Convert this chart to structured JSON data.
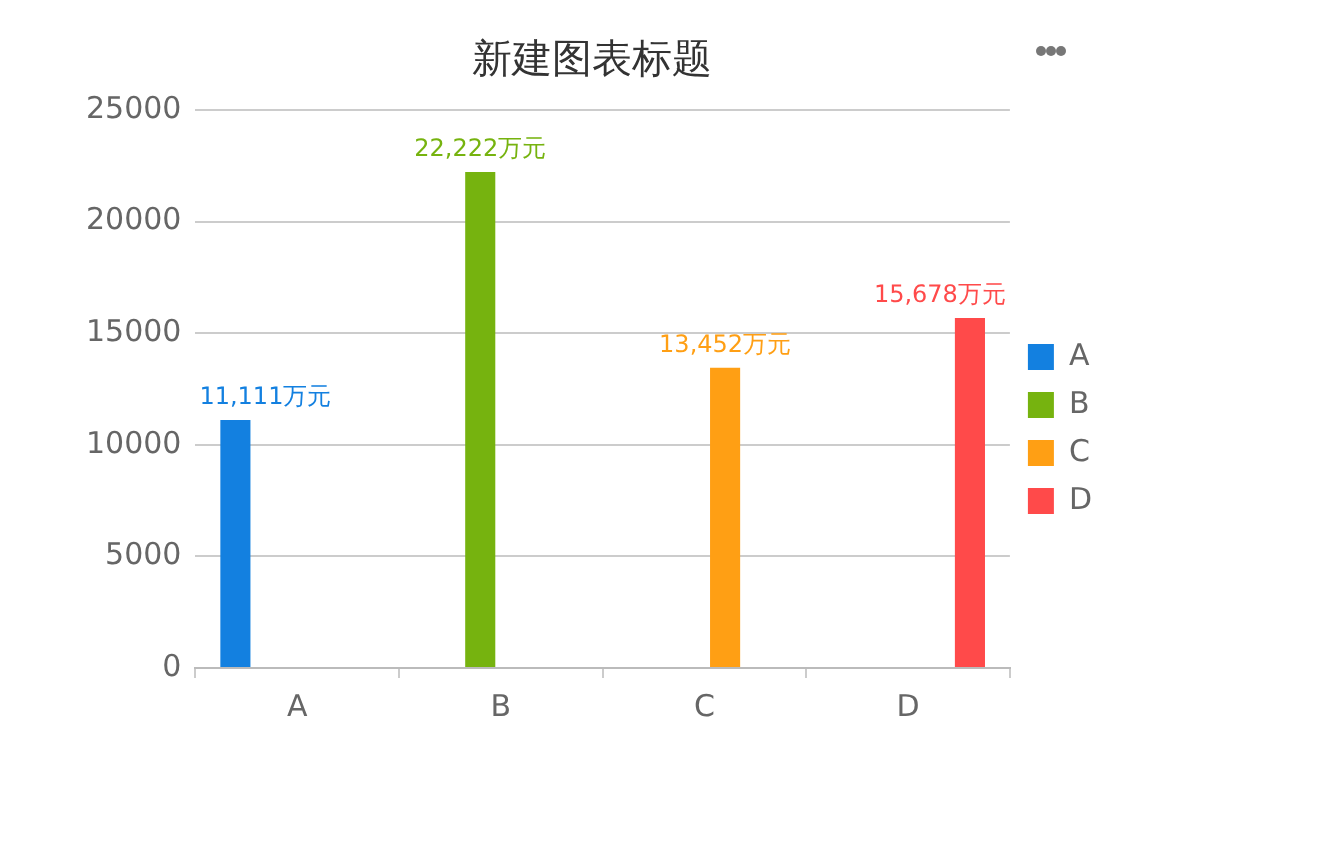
{
  "chart_data": {
    "type": "bar",
    "title": "新建图表标题",
    "categories": [
      "A",
      "B",
      "C",
      "D"
    ],
    "series": [
      {
        "name": "A",
        "color": "#1380e0",
        "values": [
          11111,
          null,
          null,
          null
        ],
        "value_labels": [
          "11,111万元",
          null,
          null,
          null
        ]
      },
      {
        "name": "B",
        "color": "#76b30f",
        "values": [
          null,
          22222,
          null,
          null
        ],
        "value_labels": [
          null,
          "22,222万元",
          null,
          null
        ]
      },
      {
        "name": "C",
        "color": "#ff9f14",
        "values": [
          null,
          null,
          13452,
          null
        ],
        "value_labels": [
          null,
          null,
          "13,452万元",
          null
        ]
      },
      {
        "name": "D",
        "color": "#ff4a4a",
        "values": [
          null,
          null,
          null,
          15678
        ],
        "value_labels": [
          null,
          null,
          null,
          "15,678万元"
        ]
      }
    ],
    "ylim": [
      0,
      25000
    ],
    "yticks": [
      0,
      5000,
      10000,
      15000,
      20000,
      25000
    ],
    "grid": "y",
    "legend": "right"
  }
}
